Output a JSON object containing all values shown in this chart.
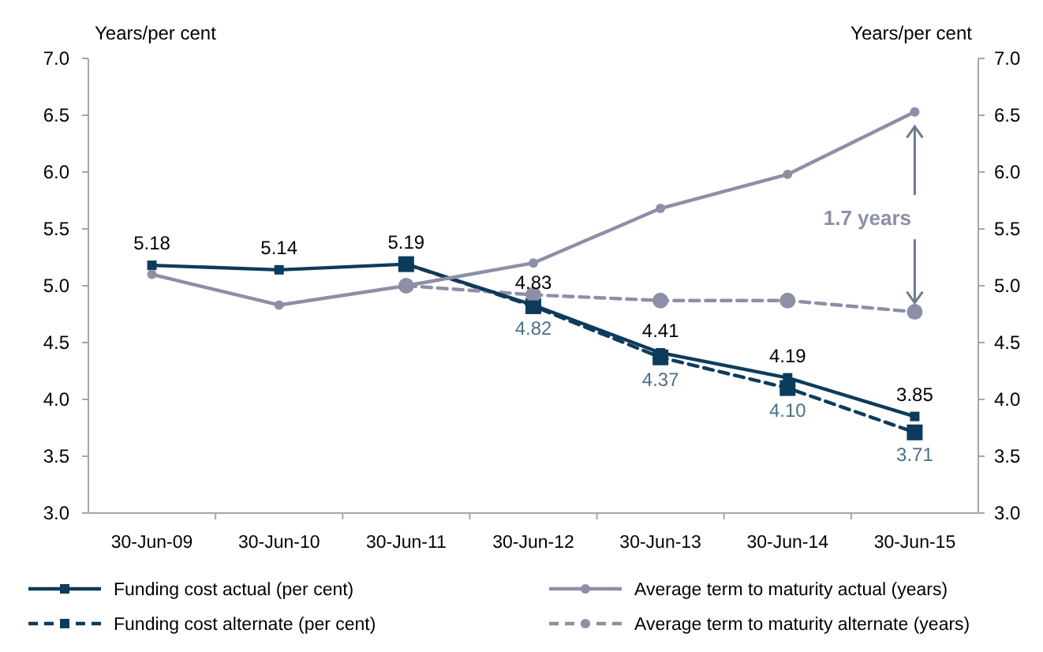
{
  "chart_data": {
    "type": "line",
    "ylabel": "Years/per cent",
    "y2label": "Years/per cent",
    "categories": [
      "30-Jun-09",
      "30-Jun-10",
      "30-Jun-11",
      "30-Jun-12",
      "30-Jun-13",
      "30-Jun-14",
      "30-Jun-15"
    ],
    "series": [
      {
        "name": "Funding cost actual (per cent)",
        "color": "#0d3b5c",
        "marker": "square",
        "line_style": "solid",
        "values": [
          5.18,
          5.14,
          5.19,
          4.83,
          4.41,
          4.19,
          3.85
        ],
        "value_labels": [
          "5.18",
          "5.14",
          "5.19",
          "4.83",
          "4.41",
          "4.19",
          "3.85"
        ]
      },
      {
        "name": "Average term to maturity actual (years)",
        "color": "#8c8fa6",
        "marker": "circle",
        "line_style": "solid",
        "values": [
          5.1,
          4.83,
          5.0,
          5.2,
          5.68,
          5.98,
          6.53
        ]
      },
      {
        "name": "Funding cost alternate (per cent)",
        "color": "#0d3b5c",
        "marker": "square",
        "line_style": "dashed",
        "values": [
          null,
          null,
          5.19,
          4.82,
          4.37,
          4.1,
          3.71
        ],
        "value_labels": [
          null,
          null,
          null,
          "4.82",
          "4.37",
          "4.10",
          "3.71"
        ]
      },
      {
        "name": "Average term to maturity alternate (years)",
        "color": "#8c8fa6",
        "marker": "circle",
        "line_style": "dashed",
        "values": [
          null,
          null,
          5.0,
          4.92,
          4.87,
          4.87,
          4.77
        ]
      }
    ],
    "ylim": [
      3,
      7
    ],
    "yticks": [
      {
        "value": 3,
        "label": "3.0"
      },
      {
        "value": 3.5,
        "label": "3.5"
      },
      {
        "value": 4,
        "label": "4.0"
      },
      {
        "value": 4.5,
        "label": "4.5"
      },
      {
        "value": 5,
        "label": "5.0"
      },
      {
        "value": 5.5,
        "label": "5.5"
      },
      {
        "value": 6,
        "label": "6.0"
      },
      {
        "value": 6.5,
        "label": "6.5"
      },
      {
        "value": 7,
        "label": "7.0"
      }
    ],
    "y2lim": [
      3,
      7
    ],
    "y2ticks": [
      {
        "value": 3,
        "label": "3.0"
      },
      {
        "value": 3.5,
        "label": "3.5"
      },
      {
        "value": 4,
        "label": "4.0"
      },
      {
        "value": 4.5,
        "label": "4.5"
      },
      {
        "value": 5,
        "label": "5.0"
      },
      {
        "value": 5.5,
        "label": "5.5"
      },
      {
        "value": 6,
        "label": "6.0"
      },
      {
        "value": 6.5,
        "label": "6.5"
      },
      {
        "value": 7,
        "label": "7.0"
      }
    ],
    "annotations": [
      {
        "text": "1.7 years",
        "x": "30-Jun-15",
        "y": 4.77
      }
    ],
    "grid": false,
    "legend": "bottom"
  }
}
